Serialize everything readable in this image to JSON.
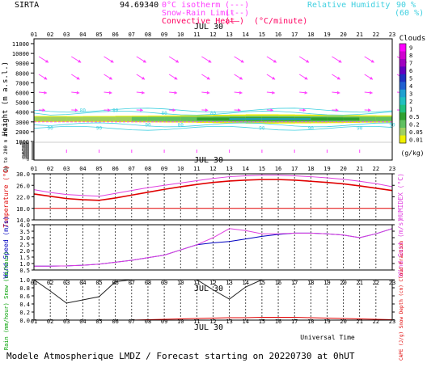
{
  "header": {
    "station": "SIRTA",
    "coords": "94.69340",
    "legend_isotherm": "0°C isotherm",
    "legend_isotherm_mark": "(---)",
    "legend_snow_rain": "Snow-Rain Limit",
    "legend_snow_rain_mark": "(---)",
    "legend_convective": "Convective Heat",
    "legend_convective_mark": "(——)",
    "legend_convective_unit": "(°C/minute)",
    "legend_rh": "Relative Humidity",
    "legend_rh_90": "90 %",
    "legend_rh_60": "(60 %)"
  },
  "footer": {
    "title": "Modele Atmospherique LMDZ / Forecast starting on 20220730 at 0hUT",
    "universal_time": "Universal Time"
  },
  "chart_data": [
    {
      "type": "heatmap",
      "panel": "clouds-wind-profile",
      "date_label": "JUL 30",
      "hours": [
        "01",
        "02",
        "03",
        "04",
        "05",
        "06",
        "07",
        "08",
        "09",
        "10",
        "11",
        "12",
        "13",
        "14",
        "15",
        "16",
        "17",
        "18",
        "19",
        "20",
        "21",
        "22",
        "23"
      ],
      "ylabel": "Height (m a.s.l.)",
      "ylabel_lower": "Up to 200 m a.s.l.",
      "upper_ticks": [
        1000,
        2000,
        3000,
        4000,
        5000,
        6000,
        7000,
        8000,
        9000,
        10000,
        11000
      ],
      "lower_ticks": [
        0,
        100,
        200,
        300,
        400,
        500,
        600,
        700,
        800,
        900,
        1000
      ],
      "colorbar_title": "Clouds",
      "colorbar_unit": "(g/kg)",
      "colorbar_labels": [
        "9",
        "8",
        "7",
        "6",
        "5",
        "4",
        "3",
        "2",
        "1",
        "0.5",
        "0.2",
        "0.05",
        "0.01"
      ],
      "colorbar_colors": [
        "#ff00ff",
        "#d000d0",
        "#a000c0",
        "#6000c0",
        "#2030c0",
        "#2060d0",
        "#20a0d0",
        "#20c0c0",
        "#20c080",
        "#30a030",
        "#60c060",
        "#a0d060",
        "#f0f000"
      ],
      "cloud_layer_m": [
        2800,
        3800
      ],
      "isotherm_0c_m": 3000,
      "contour_labels": [
        "80",
        "80",
        "80",
        "80",
        "90",
        "90",
        "90",
        "80",
        "90",
        "90",
        "90",
        "90"
      ]
    },
    {
      "type": "line",
      "panel": "temperature",
      "hours": [
        "01",
        "02",
        "03",
        "04",
        "05",
        "06",
        "07",
        "08",
        "09",
        "10",
        "11",
        "12",
        "13",
        "14",
        "15",
        "16",
        "17",
        "18",
        "19",
        "20",
        "21",
        "22",
        "23"
      ],
      "ylabel": "Temperature (°C)",
      "ylabel_right": "HUMIDEX (°C)",
      "yticks": [
        "30.0",
        "26.0",
        "22.0",
        "18.0",
        "14.0"
      ],
      "ylim": [
        14,
        30
      ],
      "series": [
        {
          "name": "Temperature",
          "color": "#e00000",
          "values": [
            23.0,
            22.2,
            21.4,
            21.0,
            20.8,
            21.6,
            22.6,
            23.6,
            24.6,
            25.5,
            26.3,
            27.0,
            27.5,
            27.8,
            28.0,
            28.0,
            27.8,
            27.4,
            27.0,
            26.5,
            25.8,
            25.0,
            24.2
          ]
        },
        {
          "name": "Humidex",
          "color": "#e040e0",
          "values": [
            24.5,
            23.5,
            22.8,
            22.5,
            22.2,
            23.2,
            24.2,
            25.2,
            26.0,
            26.8,
            27.6,
            28.4,
            29.0,
            29.3,
            29.5,
            29.5,
            29.3,
            29.0,
            28.6,
            28.1,
            27.4,
            26.6,
            25.5
          ]
        },
        {
          "name": "Reference",
          "color": "#e00000",
          "values": [
            18.0,
            18.0,
            18.0,
            18.0,
            18.0,
            18.0,
            18.0,
            18.0,
            18.0,
            18.0,
            18.0,
            18.0,
            18.0,
            18.0,
            18.0,
            18.0,
            18.0,
            18.0,
            18.0,
            18.0,
            18.0,
            18.0,
            18.0
          ]
        }
      ]
    },
    {
      "type": "line",
      "panel": "wind",
      "hours": [
        "01",
        "02",
        "03",
        "04",
        "05",
        "06",
        "07",
        "08",
        "09",
        "10",
        "11",
        "12",
        "13",
        "14",
        "15",
        "16",
        "17",
        "18",
        "19",
        "20",
        "21",
        "22",
        "23"
      ],
      "ylabel": "Wind Speed (m/s)",
      "ylabel_right": "Wind Gust (m/s)",
      "yticks": [
        "4.0",
        "3.5",
        "3.0",
        "2.5",
        "2.0",
        "1.5",
        "1.0",
        "0.5"
      ],
      "ylim": [
        0.5,
        4.0
      ],
      "series": [
        {
          "name": "Wind Speed",
          "color": "#0000c0",
          "values": [
            0.8,
            0.8,
            0.82,
            0.87,
            0.95,
            1.1,
            1.25,
            1.45,
            1.65,
            2.05,
            2.45,
            2.6,
            2.7,
            2.9,
            3.1,
            3.25,
            3.35,
            3.35,
            3.3,
            3.2,
            3.0,
            3.3,
            3.7
          ]
        },
        {
          "name": "Wind Gust",
          "color": "#e040e0",
          "values": [
            0.8,
            0.8,
            0.82,
            0.87,
            0.95,
            1.1,
            1.25,
            1.45,
            1.65,
            2.05,
            2.45,
            3.0,
            3.7,
            3.55,
            3.3,
            3.3,
            3.35,
            3.35,
            3.3,
            3.2,
            3.0,
            3.3,
            3.7
          ]
        }
      ]
    },
    {
      "type": "line",
      "panel": "precipitation",
      "hours": [
        "01",
        "02",
        "03",
        "04",
        "05",
        "06",
        "07",
        "08",
        "09",
        "10",
        "11",
        "12",
        "13",
        "14",
        "15",
        "16",
        "17",
        "18",
        "19",
        "20",
        "21",
        "22",
        "23"
      ],
      "date_label": "JUL 30",
      "ylabel": "Rain (mm/hour) Snow (cm/hour)",
      "ylabel_right": "CAPE (J/g) Snow Depth (cm) Cloud Fraction",
      "yticks": [
        "1.0",
        "0.8",
        "0.6",
        "0.4",
        "0.2",
        "0.0"
      ],
      "ylim": [
        0,
        1.0
      ],
      "series": [
        {
          "name": "Cloud Fraction",
          "color": "#202020",
          "values": [
            1.0,
            0.72,
            0.42,
            0.5,
            0.58,
            0.95,
            1.0,
            1.0,
            1.0,
            1.0,
            1.0,
            0.75,
            0.52,
            0.82,
            1.0,
            1.0,
            1.0,
            1.0,
            1.0,
            1.0,
            1.0,
            1.0,
            1.0
          ]
        },
        {
          "name": "CAPE",
          "color": "#e00000",
          "values": [
            0.0,
            0.0,
            0.0,
            0.0,
            0.0,
            0.0,
            0.0,
            0.01,
            0.02,
            0.03,
            0.04,
            0.05,
            0.06,
            0.06,
            0.07,
            0.07,
            0.07,
            0.06,
            0.05,
            0.04,
            0.03,
            0.02,
            0.01
          ]
        },
        {
          "name": "Rain",
          "color": "#00a000",
          "values": [
            0,
            0,
            0,
            0,
            0,
            0,
            0,
            0,
            0,
            0,
            0,
            0,
            0,
            0,
            0,
            0,
            0,
            0,
            0,
            0,
            0,
            0,
            0
          ]
        },
        {
          "name": "Snow",
          "color": "#0000e0",
          "values": [
            0,
            0,
            0,
            0,
            0,
            0,
            0,
            0,
            0,
            0,
            0,
            0,
            0,
            0,
            0,
            0,
            0,
            0,
            0,
            0,
            0,
            0,
            0
          ]
        }
      ]
    }
  ]
}
